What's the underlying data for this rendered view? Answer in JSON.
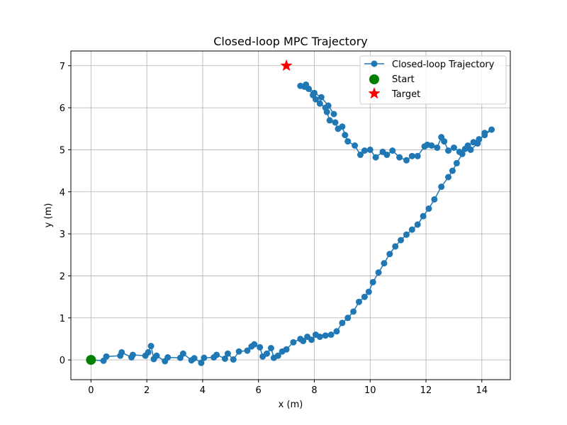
{
  "chart_data": {
    "type": "line",
    "title": "Closed-loop MPC Trajectory",
    "xlabel": "x (m)",
    "ylabel": "y (m)",
    "xlim": [
      -0.72,
      15.02
    ],
    "ylim": [
      -0.47,
      7.35
    ],
    "xticks": [
      0,
      2,
      4,
      6,
      8,
      10,
      12,
      14
    ],
    "yticks": [
      0,
      1,
      2,
      3,
      4,
      5,
      6,
      7
    ],
    "grid": true,
    "legend_position": "top-right",
    "colors": {
      "trajectory": "#1f77b4",
      "start": "#008000",
      "target": "#ff0000",
      "grid": "#b0b0b0"
    },
    "series": [
      {
        "name": "Closed-loop Trajectory",
        "marker": "circle",
        "points": [
          [
            0,
            0
          ],
          [
            0.45,
            -0.02
          ],
          [
            0.55,
            0.08
          ],
          [
            1.05,
            0.1
          ],
          [
            1.1,
            0.18
          ],
          [
            1.45,
            0.06
          ],
          [
            1.5,
            0.12
          ],
          [
            1.95,
            0.1
          ],
          [
            2.05,
            0.18
          ],
          [
            2.15,
            0.33
          ],
          [
            2.25,
            0.02
          ],
          [
            2.35,
            0.1
          ],
          [
            2.65,
            -0.03
          ],
          [
            2.75,
            0.06
          ],
          [
            3.2,
            0.05
          ],
          [
            3.3,
            0.15
          ],
          [
            3.6,
            -0.01
          ],
          [
            3.7,
            0.04
          ],
          [
            3.95,
            -0.07
          ],
          [
            4.05,
            0.05
          ],
          [
            4.4,
            0.06
          ],
          [
            4.5,
            0.12
          ],
          [
            4.8,
            0.03
          ],
          [
            4.9,
            0.15
          ],
          [
            5.1,
            0.01
          ],
          [
            5.3,
            0.2
          ],
          [
            5.6,
            0.22
          ],
          [
            5.75,
            0.32
          ],
          [
            5.85,
            0.37
          ],
          [
            6.05,
            0.3
          ],
          [
            6.15,
            0.08
          ],
          [
            6.3,
            0.15
          ],
          [
            6.45,
            0.28
          ],
          [
            6.55,
            0.05
          ],
          [
            6.7,
            0.1
          ],
          [
            6.85,
            0.2
          ],
          [
            7.0,
            0.25
          ],
          [
            7.25,
            0.42
          ],
          [
            7.5,
            0.5
          ],
          [
            7.6,
            0.45
          ],
          [
            7.75,
            0.55
          ],
          [
            7.9,
            0.48
          ],
          [
            8.05,
            0.6
          ],
          [
            8.2,
            0.55
          ],
          [
            8.4,
            0.58
          ],
          [
            8.6,
            0.6
          ],
          [
            8.8,
            0.68
          ],
          [
            9.0,
            0.88
          ],
          [
            9.2,
            1.0
          ],
          [
            9.4,
            1.15
          ],
          [
            9.6,
            1.38
          ],
          [
            9.8,
            1.5
          ],
          [
            9.95,
            1.62
          ],
          [
            10.1,
            1.85
          ],
          [
            10.3,
            2.08
          ],
          [
            10.5,
            2.3
          ],
          [
            10.7,
            2.52
          ],
          [
            10.9,
            2.7
          ],
          [
            11.1,
            2.85
          ],
          [
            11.3,
            2.98
          ],
          [
            11.5,
            3.1
          ],
          [
            11.7,
            3.22
          ],
          [
            11.9,
            3.42
          ],
          [
            12.1,
            3.6
          ],
          [
            12.3,
            3.82
          ],
          [
            12.55,
            4.12
          ],
          [
            12.8,
            4.35
          ],
          [
            12.95,
            4.5
          ],
          [
            13.1,
            4.68
          ],
          [
            13.3,
            4.9
          ],
          [
            13.5,
            5.1
          ],
          [
            13.7,
            5.18
          ],
          [
            13.9,
            5.25
          ],
          [
            14.1,
            5.35
          ],
          [
            14.35,
            5.48
          ],
          [
            14.1,
            5.4
          ],
          [
            13.85,
            5.15
          ],
          [
            13.6,
            5.0
          ],
          [
            13.4,
            5.02
          ],
          [
            13.2,
            4.95
          ],
          [
            13.0,
            5.05
          ],
          [
            12.8,
            4.98
          ],
          [
            12.65,
            5.2
          ],
          [
            12.55,
            5.3
          ],
          [
            12.4,
            5.05
          ],
          [
            12.2,
            5.1
          ],
          [
            12.05,
            5.12
          ],
          [
            11.95,
            5.08
          ],
          [
            11.7,
            4.85
          ],
          [
            11.5,
            4.85
          ],
          [
            11.3,
            4.75
          ],
          [
            11.05,
            4.82
          ],
          [
            10.8,
            4.98
          ],
          [
            10.6,
            4.88
          ],
          [
            10.45,
            4.95
          ],
          [
            10.2,
            4.82
          ],
          [
            10.0,
            5.0
          ],
          [
            9.8,
            4.98
          ],
          [
            9.65,
            4.88
          ],
          [
            9.45,
            5.1
          ],
          [
            9.2,
            5.2
          ],
          [
            9.1,
            5.35
          ],
          [
            9.0,
            5.55
          ],
          [
            8.85,
            5.5
          ],
          [
            8.75,
            5.65
          ],
          [
            8.55,
            5.7
          ],
          [
            8.45,
            5.9
          ],
          [
            8.4,
            6.0
          ],
          [
            8.2,
            6.1
          ],
          [
            8.05,
            6.2
          ],
          [
            7.95,
            6.3
          ],
          [
            7.8,
            6.45
          ],
          [
            7.65,
            6.5
          ],
          [
            7.5,
            6.52
          ],
          [
            7.7,
            6.55
          ],
          [
            8.0,
            6.35
          ],
          [
            8.25,
            6.25
          ],
          [
            8.5,
            6.05
          ],
          [
            8.7,
            5.85
          ]
        ]
      },
      {
        "name": "Start",
        "marker": "circle",
        "points": [
          [
            0,
            0
          ]
        ]
      },
      {
        "name": "Target",
        "marker": "star",
        "points": [
          [
            7,
            7
          ]
        ]
      }
    ]
  }
}
